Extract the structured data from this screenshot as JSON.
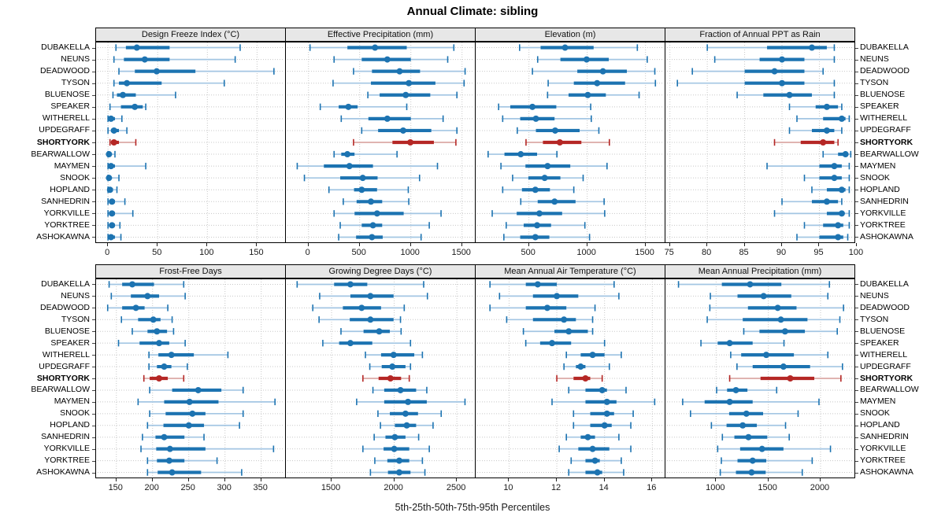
{
  "title": "Annual Climate: sibling",
  "caption": "5th-25th-50th-75th-95th Percentiles",
  "sites": [
    "DUBAKELLA",
    "NEUNS",
    "DEADWOOD",
    "TYSON",
    "BLUENOSE",
    "SPEAKER",
    "WITHERELL",
    "UPDEGRAFF",
    "SHORTYORK",
    "BEARWALLOW",
    "MAYMEN",
    "SNOOK",
    "HOPLAND",
    "SANHEDRIN",
    "YORKVILLE",
    "YORKTREE",
    "ASHOKAWNA"
  ],
  "highlight_site": "SHORTYORK",
  "colors": {
    "blue": "#1c73b1",
    "blue_light": "#a3c6e3",
    "red": "#b52725",
    "red_light": "#dca9a6",
    "strip_bg": "#e7e7e7",
    "grid": "#c8c8c8",
    "border": "#000000"
  },
  "chart_data": {
    "type": "trellis-percentile-dotplot",
    "percentiles": [
      5,
      25,
      50,
      75,
      95
    ],
    "grid": true,
    "layout": "2 rows x 4 cols, site labels on both sides, SHORTYORK highlighted red",
    "panels": [
      {
        "title": "Design Freeze Index (°C)",
        "xticks": [
          0,
          50,
          100,
          150
        ],
        "xlim": [
          -12,
          179
        ],
        "values": [
          [
            8,
            18,
            29,
            62,
            133
          ],
          [
            6,
            16,
            37,
            62,
            128
          ],
          [
            11,
            27,
            49,
            88,
            167
          ],
          [
            6,
            11,
            19,
            54,
            117
          ],
          [
            5,
            9,
            15,
            28,
            68
          ],
          [
            2,
            13,
            27,
            35,
            38
          ],
          [
            0,
            1,
            3,
            7,
            14
          ],
          [
            0,
            3,
            6,
            11,
            19
          ],
          [
            2,
            3,
            6,
            11,
            28
          ],
          [
            0,
            0,
            1,
            3,
            7
          ],
          [
            0,
            1,
            3,
            7,
            38
          ],
          [
            0,
            0,
            1,
            3,
            11
          ],
          [
            0,
            0,
            2,
            5,
            9
          ],
          [
            0,
            1,
            4,
            7,
            17
          ],
          [
            0,
            1,
            4,
            7,
            25
          ],
          [
            0,
            1,
            4,
            7,
            12
          ],
          [
            0,
            1,
            3,
            7,
            13
          ]
        ]
      },
      {
        "title": "Effective Precipitation (mm)",
        "xticks": [
          0,
          500,
          1000,
          1500
        ],
        "xlim": [
          -221,
          1633
        ],
        "values": [
          [
            15,
            380,
            650,
            960,
            1420
          ],
          [
            250,
            520,
            770,
            1000,
            1360
          ],
          [
            440,
            620,
            890,
            1090,
            1530
          ],
          [
            240,
            610,
            980,
            1240,
            1520
          ],
          [
            580,
            695,
            950,
            1190,
            1450
          ],
          [
            115,
            295,
            390,
            480,
            960
          ],
          [
            320,
            585,
            770,
            1000,
            1315
          ],
          [
            520,
            680,
            925,
            1200,
            1450
          ],
          [
            440,
            820,
            995,
            1225,
            1440
          ],
          [
            250,
            320,
            380,
            450,
            865
          ],
          [
            -110,
            150,
            400,
            630,
            1260
          ],
          [
            -40,
            310,
            530,
            675,
            1085
          ],
          [
            200,
            445,
            520,
            670,
            975
          ],
          [
            340,
            470,
            610,
            720,
            980
          ],
          [
            250,
            450,
            670,
            930,
            1295
          ],
          [
            310,
            520,
            630,
            720,
            1180
          ],
          [
            295,
            465,
            620,
            725,
            1100
          ]
        ]
      },
      {
        "title": "Elevation (m)",
        "xticks": [
          500,
          1000,
          1500
        ],
        "xlim": [
          43,
          1671
        ],
        "values": [
          [
            420,
            600,
            810,
            1055,
            1430
          ],
          [
            575,
            770,
            995,
            1185,
            1515
          ],
          [
            530,
            915,
            1135,
            1340,
            1580
          ],
          [
            665,
            885,
            1085,
            1325,
            1585
          ],
          [
            660,
            840,
            1005,
            1160,
            1445
          ],
          [
            240,
            340,
            530,
            735,
            1030
          ],
          [
            275,
            425,
            560,
            720,
            1035
          ],
          [
            400,
            560,
            725,
            935,
            1100
          ],
          [
            475,
            620,
            765,
            950,
            1190
          ],
          [
            150,
            290,
            430,
            570,
            740
          ],
          [
            260,
            470,
            660,
            855,
            1170
          ],
          [
            360,
            495,
            635,
            770,
            965
          ],
          [
            275,
            440,
            555,
            680,
            885
          ],
          [
            430,
            575,
            720,
            900,
            1145
          ],
          [
            185,
            395,
            590,
            785,
            1150
          ],
          [
            305,
            455,
            570,
            690,
            980
          ],
          [
            285,
            425,
            555,
            675,
            1020
          ]
        ]
      },
      {
        "title": "Fraction of Annual PPT as Rain",
        "xticks": [
          75,
          80,
          85,
          90,
          95,
          100
        ],
        "xlim": [
          74.4,
          99.8
        ],
        "values": [
          [
            80,
            88,
            94,
            96,
            97
          ],
          [
            81,
            87,
            90,
            93,
            97
          ],
          [
            78,
            85,
            89,
            93,
            95.5
          ],
          [
            76,
            85,
            90,
            93,
            97
          ],
          [
            84,
            87.5,
            91,
            94,
            97
          ],
          [
            91,
            94.5,
            96,
            97.5,
            98
          ],
          [
            92,
            95.5,
            98,
            98.5,
            99
          ],
          [
            91,
            94,
            96,
            97,
            98
          ],
          [
            89,
            92.5,
            95.5,
            97,
            97.5
          ],
          [
            95.5,
            97.5,
            98.5,
            98.8,
            99.2
          ],
          [
            88,
            95,
            97,
            98,
            99
          ],
          [
            93,
            95,
            97,
            98,
            99
          ],
          [
            94,
            96,
            98,
            98.5,
            99
          ],
          [
            90,
            94,
            96,
            97.5,
            98
          ],
          [
            89,
            96,
            98,
            98.3,
            99
          ],
          [
            93,
            95.5,
            97.5,
            98.2,
            99
          ],
          [
            92,
            95,
            97.5,
            98.2,
            98.8
          ]
        ]
      },
      {
        "title": "Frost-Free Days",
        "xticks": [
          150,
          200,
          250,
          300,
          350
        ],
        "xlim": [
          122,
          384
        ],
        "values": [
          [
            140,
            158,
            172,
            202,
            243
          ],
          [
            143,
            170,
            193,
            209,
            245
          ],
          [
            138,
            158,
            177,
            189,
            221
          ],
          [
            157,
            180,
            201,
            211,
            227
          ],
          [
            172,
            193,
            206,
            220,
            229
          ],
          [
            153,
            182,
            209,
            223,
            245
          ],
          [
            195,
            208,
            226,
            257,
            304
          ],
          [
            195,
            206,
            216,
            226,
            248
          ],
          [
            188,
            196,
            209,
            221,
            243
          ],
          [
            196,
            227,
            263,
            295,
            325
          ],
          [
            180,
            216,
            251,
            291,
            369
          ],
          [
            196,
            218,
            255,
            273,
            325
          ],
          [
            193,
            215,
            250,
            271,
            320
          ],
          [
            186,
            204,
            216,
            244,
            271
          ],
          [
            184,
            205,
            224,
            273,
            367
          ],
          [
            193,
            206,
            223,
            244,
            289
          ],
          [
            193,
            207,
            227,
            267,
            323
          ]
        ]
      },
      {
        "title": "Growing Degree Days (°C)",
        "xticks": [
          1500,
          2000,
          2500
        ],
        "xlim": [
          1135,
          2650
        ],
        "values": [
          [
            1225,
            1520,
            1650,
            1785,
            2235
          ],
          [
            1405,
            1650,
            1810,
            1995,
            2265
          ],
          [
            1350,
            1590,
            1740,
            1895,
            2080
          ],
          [
            1400,
            1645,
            1810,
            1995,
            2050
          ],
          [
            1575,
            1755,
            1880,
            1965,
            2055
          ],
          [
            1430,
            1560,
            1650,
            1825,
            2130
          ],
          [
            1770,
            1895,
            1995,
            2160,
            2225
          ],
          [
            1805,
            1900,
            1985,
            2090,
            2130
          ],
          [
            1750,
            1875,
            1970,
            2055,
            2120
          ],
          [
            1830,
            1920,
            2050,
            2175,
            2260
          ],
          [
            1700,
            1920,
            2110,
            2260,
            2565
          ],
          [
            1870,
            1965,
            2090,
            2190,
            2375
          ],
          [
            1890,
            2005,
            2100,
            2175,
            2310
          ],
          [
            1840,
            1930,
            2005,
            2090,
            2195
          ],
          [
            1750,
            1915,
            2000,
            2120,
            2280
          ],
          [
            1845,
            1945,
            2040,
            2120,
            2225
          ],
          [
            1810,
            1950,
            2040,
            2130,
            2245
          ]
        ]
      },
      {
        "title": "Mean Annual Air Temperature (°C)",
        "xticks": [
          10,
          12,
          14,
          16
        ],
        "xlim": [
          8.6,
          16.55
        ],
        "values": [
          [
            9.2,
            10.7,
            11.2,
            12.0,
            14.4
          ],
          [
            9.6,
            11.0,
            12.0,
            12.9,
            14.6
          ],
          [
            9.2,
            10.7,
            11.6,
            12.4,
            13.6
          ],
          [
            9.9,
            11.0,
            12.3,
            12.8,
            13.5
          ],
          [
            10.6,
            11.9,
            12.5,
            13.3,
            13.5
          ],
          [
            10.7,
            11.3,
            11.8,
            12.6,
            14.0
          ],
          [
            12.4,
            13.0,
            13.5,
            14.0,
            14.7
          ],
          [
            12.3,
            12.8,
            13.0,
            13.2,
            14.2
          ],
          [
            12.0,
            12.7,
            13.2,
            13.4,
            13.9
          ],
          [
            12.5,
            13.2,
            13.9,
            14.1,
            14.9
          ],
          [
            11.8,
            13.2,
            14.1,
            14.5,
            16.1
          ],
          [
            12.7,
            13.4,
            14.1,
            14.4,
            15.2
          ],
          [
            12.7,
            13.4,
            14.0,
            14.3,
            15.1
          ],
          [
            12.4,
            13.0,
            13.3,
            13.6,
            14.6
          ],
          [
            12.1,
            12.9,
            13.5,
            14.2,
            15.1
          ],
          [
            12.6,
            13.2,
            13.6,
            13.8,
            14.7
          ],
          [
            12.5,
            13.2,
            13.7,
            13.9,
            14.8
          ]
        ]
      },
      {
        "title": "Mean Annual Precipitation (mm)",
        "xticks": [
          1000,
          1500,
          2000
        ],
        "xlim": [
          515,
          2332
        ],
        "values": [
          [
            640,
            1055,
            1325,
            1625,
            2085
          ],
          [
            945,
            1205,
            1455,
            1720,
            2070
          ],
          [
            940,
            1305,
            1590,
            1770,
            2220
          ],
          [
            915,
            1255,
            1620,
            1875,
            2185
          ],
          [
            1265,
            1415,
            1660,
            1850,
            2160
          ],
          [
            855,
            1015,
            1130,
            1350,
            1650
          ],
          [
            1140,
            1240,
            1480,
            1745,
            2070
          ],
          [
            1200,
            1350,
            1645,
            1900,
            2210
          ],
          [
            1130,
            1425,
            1710,
            1940,
            2195
          ],
          [
            1005,
            1105,
            1190,
            1300,
            1580
          ],
          [
            680,
            890,
            1130,
            1350,
            1985
          ],
          [
            755,
            1125,
            1290,
            1450,
            1785
          ],
          [
            955,
            1100,
            1255,
            1390,
            1665
          ],
          [
            1060,
            1175,
            1310,
            1490,
            1700
          ],
          [
            1015,
            1230,
            1440,
            1645,
            2095
          ],
          [
            1050,
            1205,
            1350,
            1480,
            1920
          ],
          [
            1040,
            1190,
            1340,
            1475,
            1825
          ]
        ]
      }
    ]
  }
}
